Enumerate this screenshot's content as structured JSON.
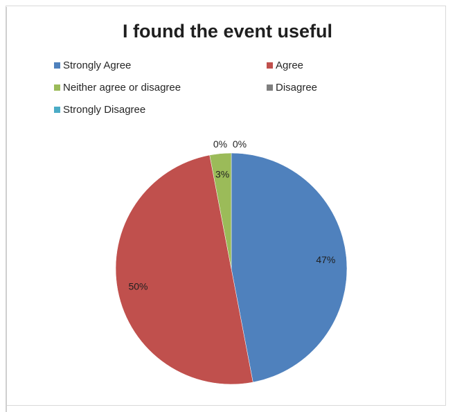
{
  "chart_data": {
    "type": "pie",
    "title": "I found the event useful",
    "categories": [
      "Strongly Agree",
      "Agree",
      "Neither agree or disagree",
      "Disagree",
      "Strongly Disagree"
    ],
    "values": [
      47,
      50,
      3,
      0,
      0
    ],
    "data_labels": [
      "47%",
      "50%",
      "3%",
      "0%",
      "0%"
    ],
    "colors": [
      "#4f81bd",
      "#c0504d",
      "#9bbb59",
      "#7f7f7f",
      "#4bacc6"
    ],
    "legend_position": "top"
  }
}
